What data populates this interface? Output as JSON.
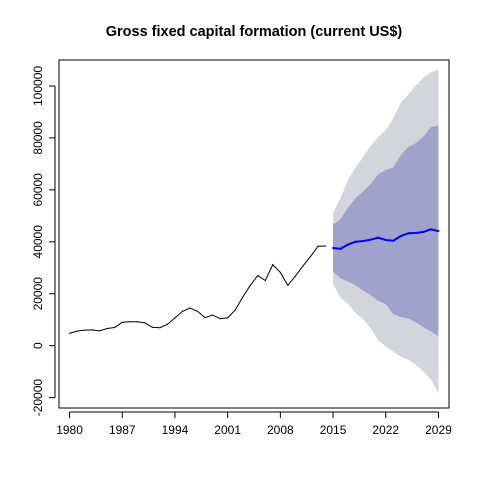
{
  "chart_data": {
    "type": "line",
    "title": "Gross fixed capital formation (current US$)",
    "xlabel": "",
    "ylabel": "",
    "xlim": [
      1978.6,
      2030.4
    ],
    "ylim": [
      -24000,
      110000
    ],
    "x_ticks": [
      1980,
      1987,
      1994,
      2001,
      2008,
      2015,
      2022,
      2029
    ],
    "y_ticks": [
      -20000,
      0,
      20000,
      40000,
      60000,
      80000,
      100000
    ],
    "grid": false,
    "legend": "none",
    "colors": {
      "history": "#000000",
      "forecast": "#0000ff",
      "band_80": "#9fa2cb",
      "band_95": "#d4d4dc",
      "axis": "#000000"
    },
    "series": [
      {
        "role": "history",
        "x": [
          1980,
          1981,
          1982,
          1983,
          1984,
          1985,
          1986,
          1987,
          1988,
          1989,
          1990,
          1991,
          1992,
          1993,
          1994,
          1995,
          1996,
          1997,
          1998,
          1999,
          2000,
          2001,
          2002,
          2003,
          2004,
          2005,
          2006,
          2007,
          2008,
          2009,
          2010,
          2011,
          2012,
          2013,
          2014
        ],
        "values": [
          4800,
          5600,
          6000,
          6100,
          5700,
          6600,
          7000,
          9000,
          9200,
          9200,
          8800,
          7100,
          6900,
          8200,
          10700,
          13200,
          14500,
          13200,
          10800,
          11800,
          10400,
          10700,
          13700,
          18700,
          23200,
          27000,
          25100,
          31200,
          28200,
          23200,
          26800,
          30700,
          34300,
          38300,
          38400
        ]
      },
      {
        "role": "forecast",
        "x": [
          2015,
          2016,
          2017,
          2018,
          2019,
          2020,
          2021,
          2022,
          2023,
          2024,
          2025,
          2026,
          2027,
          2028,
          2029
        ],
        "values": [
          37600,
          37300,
          39000,
          40000,
          40300,
          40800,
          41600,
          40700,
          40400,
          42200,
          43300,
          43400,
          43800,
          44800,
          44100
        ],
        "lo80": [
          28500,
          25900,
          24700,
          23200,
          21200,
          19400,
          17200,
          16000,
          12200,
          11000,
          10400,
          9000,
          7100,
          5500,
          3500
        ],
        "hi80": [
          46600,
          48800,
          53200,
          56800,
          59400,
          62200,
          66000,
          67700,
          68600,
          73400,
          76500,
          78000,
          80500,
          84200,
          84700
        ],
        "lo95": [
          23600,
          18400,
          16000,
          12600,
          10200,
          6700,
          2100,
          -300,
          -2300,
          -4200,
          -5400,
          -7400,
          -10000,
          -13000,
          -18500
        ],
        "hi95": [
          51000,
          57000,
          64000,
          68700,
          72800,
          77000,
          80400,
          83000,
          87600,
          93600,
          96700,
          100100,
          103200,
          105300,
          106500
        ]
      }
    ]
  }
}
